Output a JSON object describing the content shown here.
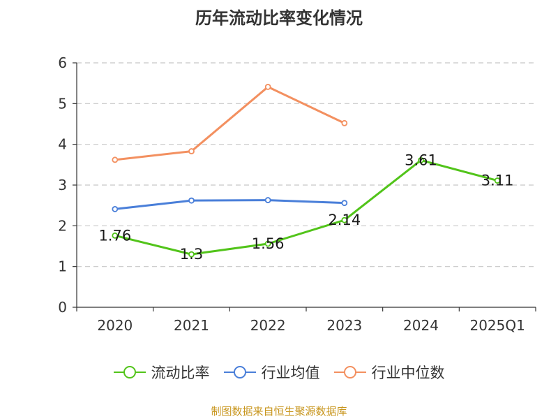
{
  "chart_data": {
    "type": "line",
    "title": "历年流动比率变化情况",
    "categories": [
      "2020",
      "2021",
      "2022",
      "2023",
      "2024",
      "2025Q1"
    ],
    "ylim": [
      0,
      6
    ],
    "yticks": [
      0,
      1,
      2,
      3,
      4,
      5,
      6
    ],
    "grid": true,
    "legend_position": "bottom",
    "series": [
      {
        "name": "流动比率",
        "color": "#52c41a",
        "values": [
          1.76,
          1.3,
          1.56,
          2.14,
          3.61,
          3.11
        ],
        "labels": [
          "1.76",
          "1.3",
          "1.56",
          "2.14",
          "3.61",
          "3.11"
        ]
      },
      {
        "name": "行业均值",
        "color": "#4a7fd9",
        "values": [
          2.41,
          2.62,
          2.63,
          2.56,
          null,
          null
        ],
        "labels": []
      },
      {
        "name": "行业中位数",
        "color": "#f39060",
        "values": [
          3.62,
          3.83,
          5.41,
          4.52,
          null,
          null
        ],
        "labels": []
      }
    ]
  },
  "source": "制图数据来自恒生聚源数据库"
}
